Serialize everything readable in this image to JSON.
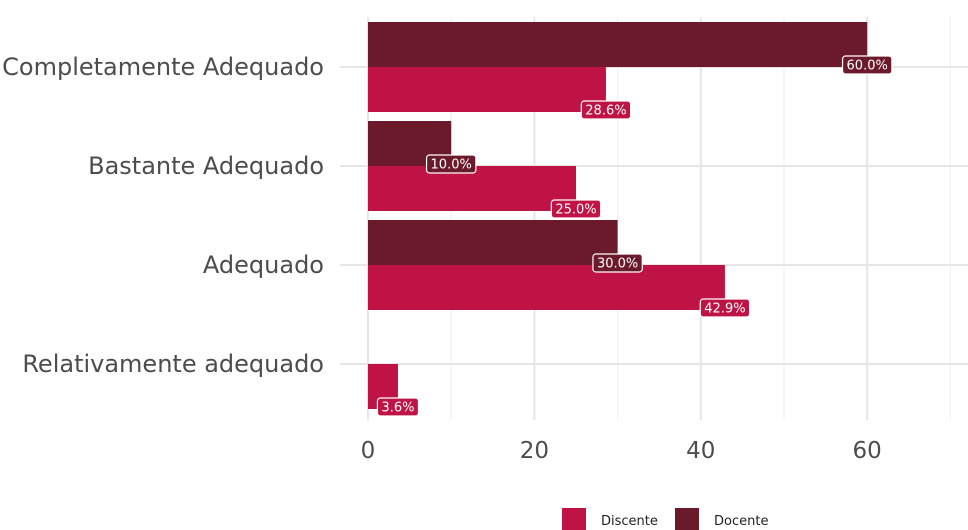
{
  "chart_data": {
    "type": "bar",
    "orientation": "horizontal",
    "categories": [
      "Completamente Adequado",
      "Bastante Adequado",
      "Adequado",
      "Relativamente adequado"
    ],
    "series": [
      {
        "name": "Docente",
        "color": "#6b1a2c",
        "values": [
          60,
          10,
          30,
          null
        ],
        "labels": [
          "60.0%",
          "10.0%",
          "30.0%",
          ""
        ]
      },
      {
        "name": "Discente",
        "color": "#be1344",
        "values": [
          28.6,
          25,
          42.9,
          3.6
        ],
        "labels": [
          "28.6%",
          "25.0%",
          "42.9%",
          "3.6%"
        ]
      }
    ],
    "xlim": [
      0,
      70
    ],
    "xticks": [
      0,
      20,
      40,
      60
    ],
    "xtick_labels": [
      "0",
      "20",
      "40",
      "60"
    ],
    "grid": true,
    "legend": {
      "placement": "bottom",
      "entries": [
        "Discente",
        "Docente"
      ]
    },
    "title": "",
    "xlabel": "",
    "ylabel": ""
  }
}
